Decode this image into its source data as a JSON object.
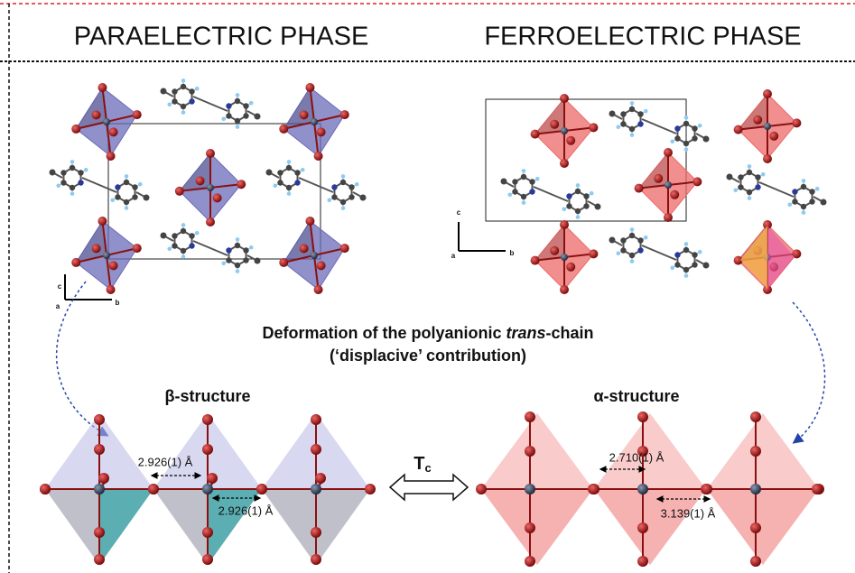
{
  "header": {
    "left": "PARAELECTRIC PHASE",
    "right": "FERROELECTRIC PHASE"
  },
  "caption": {
    "line1_before": "Deformation of the polyanionic ",
    "line1_italic": "trans",
    "line1_after": "-chain",
    "line2": "(‘displacive’ contribution)"
  },
  "axes_left": {
    "a": "a",
    "b": "b",
    "c": "c"
  },
  "axes_right": {
    "a": "a",
    "b": "b",
    "c": "c"
  },
  "beta": {
    "label": "β-structure",
    "distance_top": "2.926(1) Å",
    "distance_bottom": "2.926(1) Å"
  },
  "alpha": {
    "label": "α-structure",
    "distance_top": "2.710(1) Å",
    "distance_bottom": "3.139(1) Å"
  },
  "transition": {
    "symbol": "T",
    "subscript": "c"
  }
}
